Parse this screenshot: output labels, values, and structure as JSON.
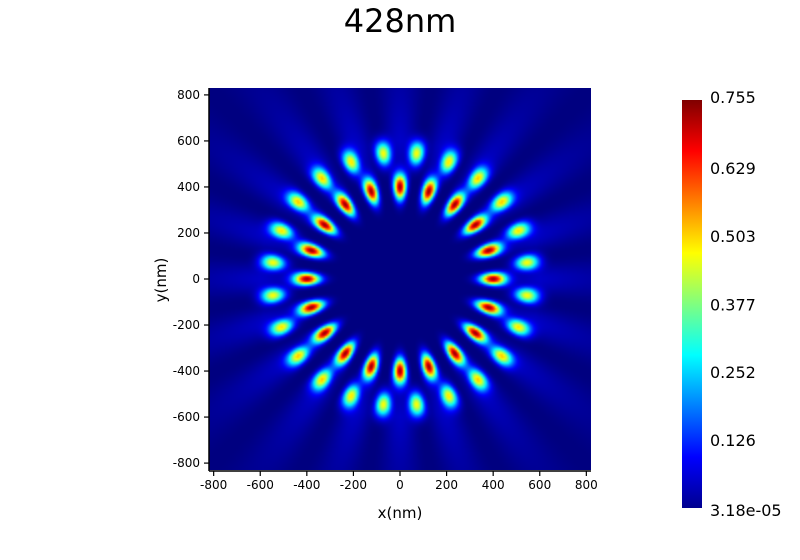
{
  "chart_data": {
    "type": "heatmap",
    "title": "428nm",
    "xlabel": "x(nm)",
    "ylabel": "y(nm)",
    "xlim": [
      -820,
      820
    ],
    "ylim": [
      -830,
      830
    ],
    "xticks": [
      -800,
      -600,
      -400,
      -200,
      0,
      200,
      400,
      600,
      800
    ],
    "yticks": [
      -800,
      -600,
      -400,
      -200,
      0,
      200,
      400,
      600,
      800
    ],
    "xtick_labels": [
      "-800",
      "-600",
      "-400",
      "-200",
      "0",
      "200",
      "400",
      "600",
      "800"
    ],
    "ytick_labels": [
      "-800",
      "-600",
      "-400",
      "-200",
      "0",
      "200",
      "400",
      "600",
      "800"
    ],
    "colormap": "jet",
    "colorbar": {
      "min": 3.18e-05,
      "max": 0.755,
      "ticks": [
        0.755,
        0.629,
        0.503,
        0.377,
        0.252,
        0.126,
        3.18e-05
      ],
      "tick_labels": [
        "0.755",
        "0.629",
        "0.503",
        "0.377",
        "0.252",
        "0.126",
        "3.18e-05"
      ]
    },
    "field_pattern": {
      "description": "two concentric rings of intensity lobes",
      "rings": [
        {
          "radius_nm": 400,
          "lobes": 20,
          "peak_value": 0.74
        },
        {
          "radius_nm": 550,
          "lobes": 24,
          "peak_value": 0.47
        }
      ],
      "inner_rings_phase_offset": 0.5
    }
  }
}
